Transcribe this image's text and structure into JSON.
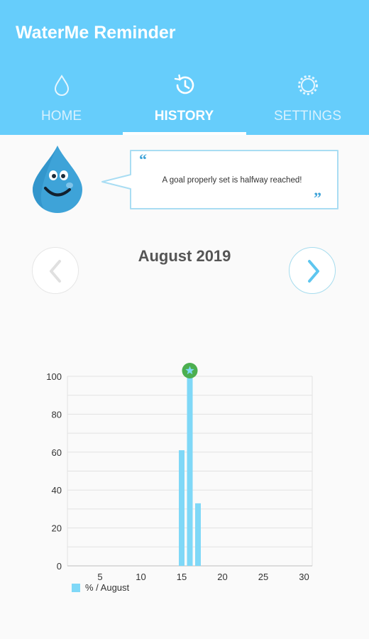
{
  "app": {
    "title": "WaterMe Reminder"
  },
  "tabs": [
    {
      "label": "HOME",
      "icon": "drop-icon"
    },
    {
      "label": "HISTORY",
      "icon": "history-icon",
      "active": true
    },
    {
      "label": "SETTINGS",
      "icon": "gear-icon"
    }
  ],
  "bubble": {
    "quote": "A goal properly set is halfway reached!"
  },
  "month_nav": {
    "label": "August 2019"
  },
  "colors": {
    "primary": "#66cdfb",
    "bar": "#7fd8f7",
    "goal_marker": "#4caf50"
  },
  "chart_data": {
    "type": "bar",
    "x": [
      15,
      16,
      17
    ],
    "values": [
      61,
      100,
      33
    ],
    "goal_reached_days": [
      16
    ],
    "xlim": [
      1,
      31
    ],
    "ylim": [
      0,
      100
    ],
    "x_ticks": [
      5,
      10,
      15,
      20,
      25,
      30
    ],
    "y_ticks": [
      0,
      20,
      40,
      60,
      80,
      100
    ],
    "grid": true,
    "legend": {
      "label": "% / August",
      "placement": "bottom-left"
    }
  }
}
